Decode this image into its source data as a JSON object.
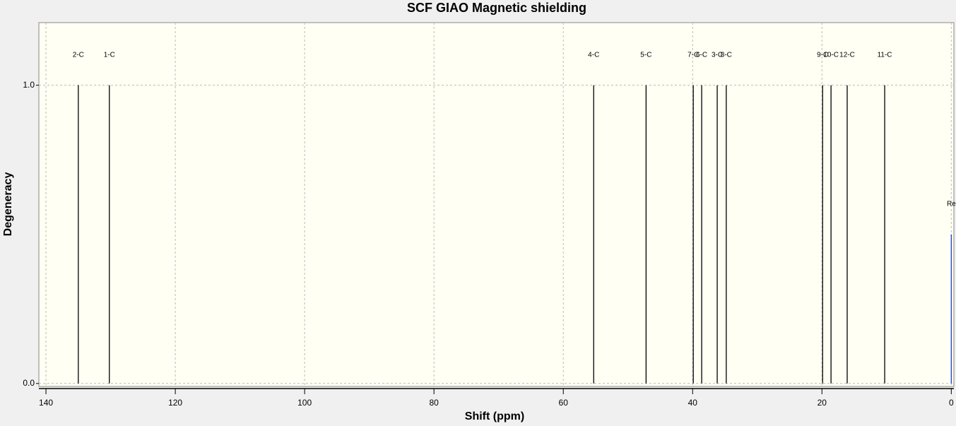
{
  "chart_data": {
    "type": "stem",
    "title": "SCF GIAO Magnetic shielding",
    "x_label": "Shift (ppm)",
    "y_label": "Degeneracy",
    "xlim": [
      141.1,
      -0.4
    ],
    "ylim": [
      -0.01,
      1.21
    ],
    "xticks": [
      140,
      120,
      100,
      80,
      60,
      40,
      20,
      0
    ],
    "yticks": [
      {
        "value": 0,
        "label": "0.0"
      },
      {
        "value": 1,
        "label": "1.0"
      }
    ],
    "grid": true,
    "series": [
      {
        "name": "C",
        "color": "#000000",
        "labels": [
          "2-C",
          "1-C",
          "4-C",
          "5-C",
          "7-C",
          "6-C",
          "3-C",
          "8-C",
          "9-C",
          "10-C",
          "12-C",
          "11-C"
        ],
        "x": [
          135.0,
          130.2,
          55.3,
          47.2,
          39.9,
          38.6,
          36.2,
          34.8,
          19.9,
          18.6,
          16.1,
          10.3
        ],
        "values": [
          1,
          1,
          1,
          1,
          1,
          1,
          1,
          1,
          1,
          1,
          1,
          1
        ]
      },
      {
        "name": "Re",
        "color": "#1f3fbf",
        "labels": [
          "Re"
        ],
        "x": [
          0
        ],
        "values": [
          0.5
        ]
      }
    ]
  }
}
